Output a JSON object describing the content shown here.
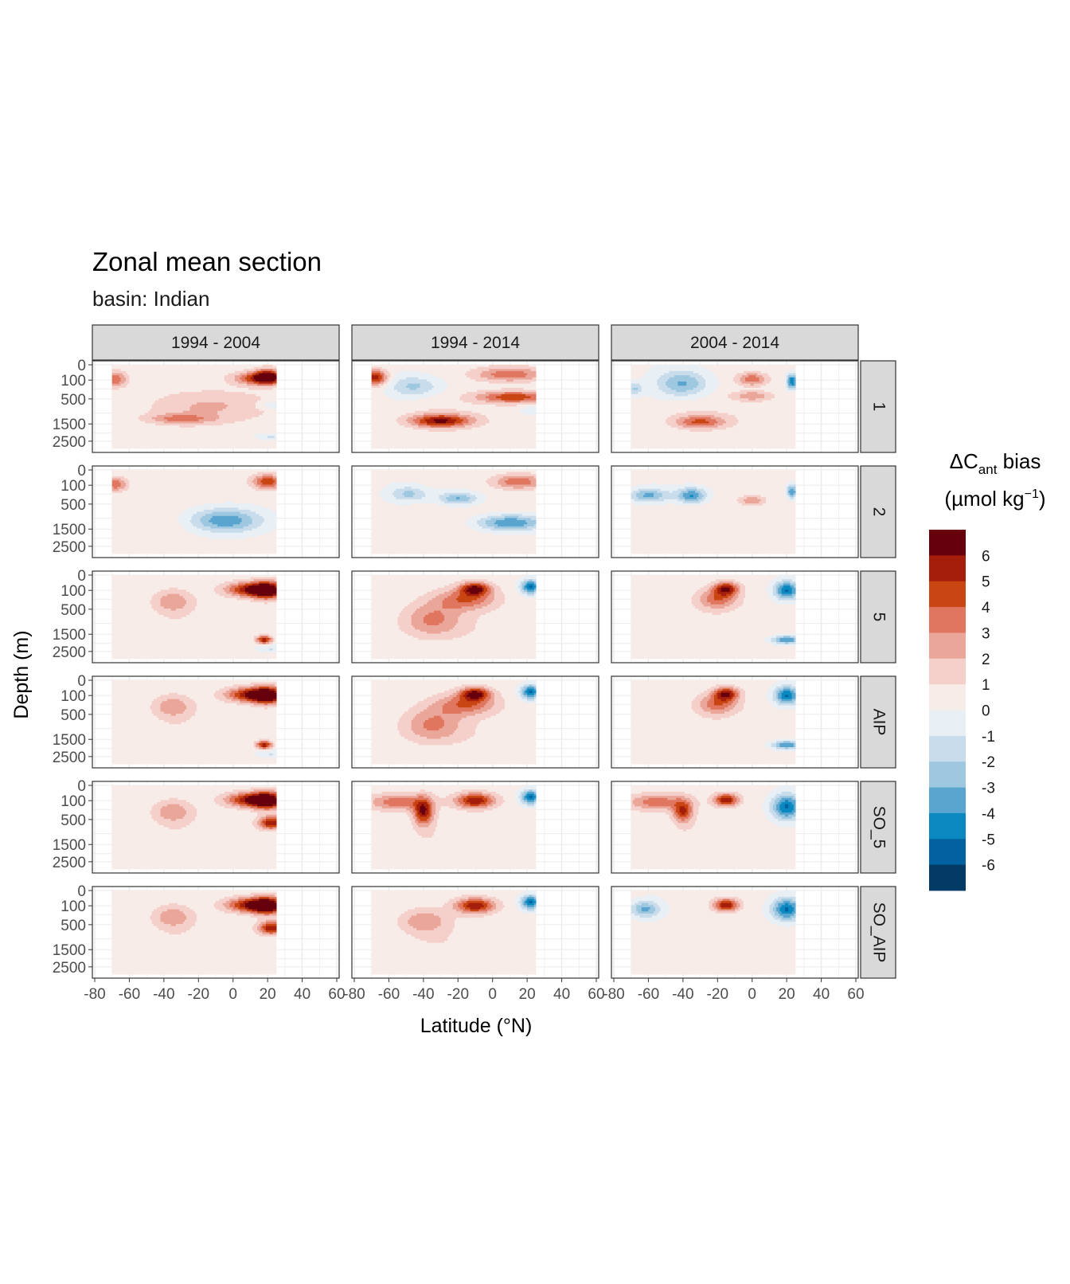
{
  "chart_data": {
    "type": "heatmap",
    "title": "Zonal mean section",
    "subtitle": "basin: Indian",
    "xlabel": "Latitude (°N)",
    "ylabel": "Depth (m)",
    "x_ticks": [
      "-80",
      "-60",
      "-40",
      "-20",
      "0",
      "20",
      "40",
      "60"
    ],
    "x_range": [
      -80,
      60
    ],
    "x_data_extent": [
      -70,
      25
    ],
    "y_ticks": [
      "0",
      "100",
      "500",
      "1500",
      "2500"
    ],
    "y_scale": "sqrt, reversed",
    "y_range": [
      0,
      3000
    ],
    "col_facets": [
      "1994 - 2004",
      "1994 - 2014",
      "2004 - 2014"
    ],
    "row_facets": [
      "1",
      "2",
      "5",
      "AIP",
      "SO_5",
      "SO_AIP"
    ],
    "grid": true,
    "legend": {
      "title_main": "ΔC",
      "title_sub": "ant",
      "title_tail": " bias",
      "unit_pre": "(µmol kg",
      "unit_sup": "−1",
      "unit_post": ")",
      "position": "right",
      "labels": [
        "6",
        "5",
        "4",
        "3",
        "2",
        "1",
        "0",
        "-1",
        "-2",
        "-3",
        "-4",
        "-5",
        "-6"
      ],
      "colors": [
        "#67000d",
        "#a51e0c",
        "#c94512",
        "#e0765f",
        "#eba69a",
        "#f5d0ca",
        "#f8ece9",
        "#e8eff5",
        "#c9dcec",
        "#9ec8e0",
        "#5aa5cf",
        "#0a89c1",
        "#02629f",
        "#043a66"
      ]
    },
    "fields_note": "Each panel is a filled contour of the bias on 14 levels (-7 to 7); level index 0 = darkest red (>6), 13 = darkest blue (<-6).",
    "panels": [
      {
        "row": "1",
        "col": "1994 - 2004",
        "features": [
          {
            "lat": -68,
            "depth": 90,
            "wlat": 5,
            "wdepth": 80,
            "level": 3
          },
          {
            "lat": -30,
            "depth": 1250,
            "wlat": 13,
            "wdepth": 140,
            "level": 4
          },
          {
            "lat": -10,
            "depth": 700,
            "wlat": 25,
            "wdepth": 400,
            "level": 5
          },
          {
            "lat": 15,
            "depth": 80,
            "wlat": 10,
            "wdepth": 60,
            "level": 2
          },
          {
            "lat": 20,
            "depth": 60,
            "wlat": 5,
            "wdepth": 60,
            "level": 1
          },
          {
            "lat": 22,
            "depth": 700,
            "wlat": 6,
            "wdepth": 100,
            "level": 8
          },
          {
            "lat": 22,
            "depth": 2200,
            "wlat": 6,
            "wdepth": 120,
            "level": 8
          }
        ]
      },
      {
        "row": "1",
        "col": "1994 - 2014",
        "features": [
          {
            "lat": -68,
            "depth": 70,
            "wlat": 5,
            "wdepth": 70,
            "level": 1
          },
          {
            "lat": -45,
            "depth": 200,
            "wlat": 10,
            "wdepth": 150,
            "level": 9
          },
          {
            "lat": -30,
            "depth": 1350,
            "wlat": 12,
            "wdepth": 220,
            "level": 1
          },
          {
            "lat": 10,
            "depth": 40,
            "wlat": 14,
            "wdepth": 50,
            "level": 3
          },
          {
            "lat": 12,
            "depth": 450,
            "wlat": 15,
            "wdepth": 120,
            "level": 2
          },
          {
            "lat": 22,
            "depth": 900,
            "wlat": 4,
            "wdepth": 100,
            "level": 8
          }
        ]
      },
      {
        "row": "1",
        "col": "2004 - 2014",
        "features": [
          {
            "lat": -68,
            "depth": 250,
            "wlat": 3,
            "wdepth": 100,
            "level": 9
          },
          {
            "lat": -40,
            "depth": 150,
            "wlat": 10,
            "wdepth": 180,
            "level": 10
          },
          {
            "lat": -30,
            "depth": 1400,
            "wlat": 10,
            "wdepth": 220,
            "level": 3
          },
          {
            "lat": 0,
            "depth": 90,
            "wlat": 6,
            "wdepth": 60,
            "level": 3
          },
          {
            "lat": 0,
            "depth": 420,
            "wlat": 8,
            "wdepth": 90,
            "level": 4
          },
          {
            "lat": 23,
            "depth": 120,
            "wlat": 2,
            "wdepth": 80,
            "level": 12
          }
        ]
      },
      {
        "row": "2",
        "col": "1994 - 2004",
        "features": [
          {
            "lat": -68,
            "depth": 90,
            "wlat": 5,
            "wdepth": 70,
            "level": 3
          },
          {
            "lat": -5,
            "depth": 1100,
            "wlat": 15,
            "wdepth": 400,
            "level": 11
          },
          {
            "lat": 20,
            "depth": 60,
            "wlat": 6,
            "wdepth": 60,
            "level": 2
          }
        ]
      },
      {
        "row": "2",
        "col": "1994 - 2014",
        "features": [
          {
            "lat": -48,
            "depth": 250,
            "wlat": 8,
            "wdepth": 120,
            "level": 9
          },
          {
            "lat": -20,
            "depth": 350,
            "wlat": 8,
            "wdepth": 120,
            "level": 10
          },
          {
            "lat": 10,
            "depth": 1200,
            "wlat": 14,
            "wdepth": 260,
            "level": 11
          },
          {
            "lat": 15,
            "depth": 60,
            "wlat": 10,
            "wdepth": 60,
            "level": 3
          }
        ]
      },
      {
        "row": "2",
        "col": "2004 - 2014",
        "features": [
          {
            "lat": -60,
            "depth": 280,
            "wlat": 8,
            "wdepth": 110,
            "level": 10
          },
          {
            "lat": -35,
            "depth": 280,
            "wlat": 6,
            "wdepth": 130,
            "level": 11
          },
          {
            "lat": 0,
            "depth": 400,
            "wlat": 5,
            "wdepth": 80,
            "level": 4
          },
          {
            "lat": 23,
            "depth": 200,
            "wlat": 2,
            "wdepth": 90,
            "level": 11
          }
        ]
      },
      {
        "row": "5",
        "col": "1994 - 2004",
        "features": [
          {
            "lat": -35,
            "depth": 300,
            "wlat": 8,
            "wdepth": 200,
            "level": 4
          },
          {
            "lat": 10,
            "depth": 90,
            "wlat": 10,
            "wdepth": 70,
            "level": 1
          },
          {
            "lat": 20,
            "depth": 100,
            "wlat": 6,
            "wdepth": 90,
            "level": 0
          },
          {
            "lat": 18,
            "depth": 1800,
            "wlat": 3,
            "wdepth": 150,
            "level": 1
          },
          {
            "lat": 22,
            "depth": 2300,
            "wlat": 6,
            "wdepth": 150,
            "level": 8
          }
        ]
      },
      {
        "row": "5",
        "col": "1994 - 2014",
        "features": [
          {
            "lat": -35,
            "depth": 800,
            "wlat": 12,
            "wdepth": 500,
            "level": 4
          },
          {
            "lat": -15,
            "depth": 250,
            "wlat": 12,
            "wdepth": 180,
            "level": 3
          },
          {
            "lat": -10,
            "depth": 80,
            "wlat": 6,
            "wdepth": 60,
            "level": 1
          },
          {
            "lat": 22,
            "depth": 60,
            "wlat": 4,
            "wdepth": 60,
            "level": 12
          }
        ]
      },
      {
        "row": "5",
        "col": "2004 - 2014",
        "features": [
          {
            "lat": -20,
            "depth": 250,
            "wlat": 8,
            "wdepth": 160,
            "level": 3
          },
          {
            "lat": -15,
            "depth": 80,
            "wlat": 5,
            "wdepth": 60,
            "level": 1
          },
          {
            "lat": 20,
            "depth": 100,
            "wlat": 5,
            "wdepth": 100,
            "level": 12
          },
          {
            "lat": 20,
            "depth": 1800,
            "wlat": 6,
            "wdepth": 150,
            "level": 11
          }
        ]
      },
      {
        "row": "AIP",
        "col": "1994 - 2004",
        "features": [
          {
            "lat": -35,
            "depth": 300,
            "wlat": 8,
            "wdepth": 200,
            "level": 4
          },
          {
            "lat": 10,
            "depth": 90,
            "wlat": 10,
            "wdepth": 70,
            "level": 1
          },
          {
            "lat": 20,
            "depth": 100,
            "wlat": 6,
            "wdepth": 90,
            "level": 0
          },
          {
            "lat": 18,
            "depth": 1800,
            "wlat": 3,
            "wdepth": 150,
            "level": 1
          },
          {
            "lat": 22,
            "depth": 2300,
            "wlat": 6,
            "wdepth": 150,
            "level": 8
          }
        ]
      },
      {
        "row": "AIP",
        "col": "1994 - 2014",
        "features": [
          {
            "lat": -35,
            "depth": 800,
            "wlat": 12,
            "wdepth": 500,
            "level": 4
          },
          {
            "lat": -15,
            "depth": 250,
            "wlat": 12,
            "wdepth": 180,
            "level": 3
          },
          {
            "lat": -10,
            "depth": 80,
            "wlat": 6,
            "wdepth": 60,
            "level": 1
          },
          {
            "lat": 22,
            "depth": 60,
            "wlat": 4,
            "wdepth": 60,
            "level": 12
          }
        ]
      },
      {
        "row": "AIP",
        "col": "2004 - 2014",
        "features": [
          {
            "lat": -20,
            "depth": 250,
            "wlat": 8,
            "wdepth": 160,
            "level": 3
          },
          {
            "lat": -15,
            "depth": 80,
            "wlat": 5,
            "wdepth": 60,
            "level": 1
          },
          {
            "lat": 20,
            "depth": 100,
            "wlat": 5,
            "wdepth": 100,
            "level": 12
          },
          {
            "lat": 20,
            "depth": 1800,
            "wlat": 6,
            "wdepth": 150,
            "level": 11
          }
        ]
      },
      {
        "row": "SO_5",
        "col": "1994 - 2004",
        "features": [
          {
            "lat": -35,
            "depth": 300,
            "wlat": 8,
            "wdepth": 200,
            "level": 4
          },
          {
            "lat": 10,
            "depth": 90,
            "wlat": 10,
            "wdepth": 70,
            "level": 1
          },
          {
            "lat": 20,
            "depth": 100,
            "wlat": 6,
            "wdepth": 90,
            "level": 0
          },
          {
            "lat": 22,
            "depth": 600,
            "wlat": 5,
            "wdepth": 150,
            "level": 1
          }
        ]
      },
      {
        "row": "SO_5",
        "col": "1994 - 2014",
        "features": [
          {
            "lat": -55,
            "depth": 120,
            "wlat": 12,
            "wdepth": 100,
            "level": 3
          },
          {
            "lat": -40,
            "depth": 300,
            "wlat": 4,
            "wdepth": 250,
            "level": 1
          },
          {
            "lat": -10,
            "depth": 100,
            "wlat": 8,
            "wdepth": 80,
            "level": 1
          },
          {
            "lat": 22,
            "depth": 60,
            "wlat": 4,
            "wdepth": 60,
            "level": 12
          }
        ]
      },
      {
        "row": "SO_5",
        "col": "2004 - 2014",
        "features": [
          {
            "lat": -55,
            "depth": 120,
            "wlat": 12,
            "wdepth": 100,
            "level": 3
          },
          {
            "lat": -40,
            "depth": 300,
            "wlat": 4,
            "wdepth": 200,
            "level": 2
          },
          {
            "lat": -15,
            "depth": 90,
            "wlat": 5,
            "wdepth": 60,
            "level": 1
          },
          {
            "lat": 20,
            "depth": 200,
            "wlat": 6,
            "wdepth": 200,
            "level": 12
          }
        ]
      },
      {
        "row": "SO_AIP",
        "col": "1994 - 2004",
        "features": [
          {
            "lat": -35,
            "depth": 300,
            "wlat": 8,
            "wdepth": 200,
            "level": 4
          },
          {
            "lat": 10,
            "depth": 90,
            "wlat": 10,
            "wdepth": 70,
            "level": 1
          },
          {
            "lat": 20,
            "depth": 100,
            "wlat": 6,
            "wdepth": 90,
            "level": 0
          },
          {
            "lat": 22,
            "depth": 600,
            "wlat": 5,
            "wdepth": 150,
            "level": 1
          }
        ]
      },
      {
        "row": "SO_AIP",
        "col": "1994 - 2014",
        "features": [
          {
            "lat": -40,
            "depth": 400,
            "wlat": 10,
            "wdepth": 250,
            "level": 4
          },
          {
            "lat": -10,
            "depth": 100,
            "wlat": 8,
            "wdepth": 80,
            "level": 1
          },
          {
            "lat": 22,
            "depth": 60,
            "wlat": 4,
            "wdepth": 60,
            "level": 12
          }
        ]
      },
      {
        "row": "SO_AIP",
        "col": "2004 - 2014",
        "features": [
          {
            "lat": -62,
            "depth": 150,
            "wlat": 6,
            "wdepth": 100,
            "level": 10
          },
          {
            "lat": -15,
            "depth": 90,
            "wlat": 5,
            "wdepth": 60,
            "level": 1
          },
          {
            "lat": 20,
            "depth": 150,
            "wlat": 6,
            "wdepth": 150,
            "level": 12
          }
        ]
      }
    ]
  }
}
